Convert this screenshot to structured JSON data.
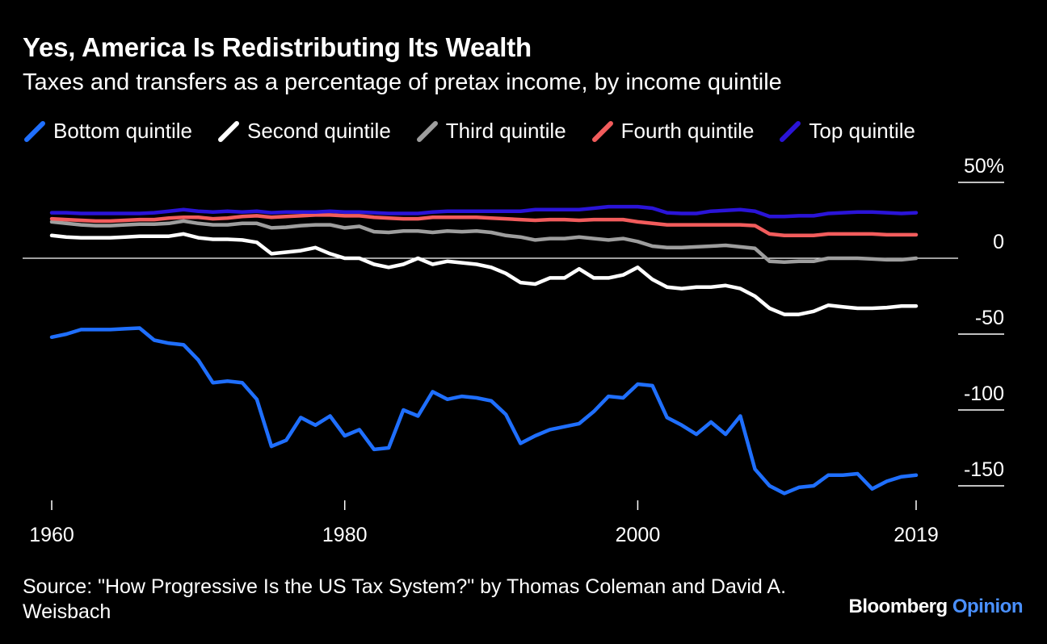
{
  "title": "Yes, America Is Redistributing Its Wealth",
  "subtitle": "Taxes and transfers as a percentage of pretax income, by income quintile",
  "source": "Source: \"How Progressive Is the US Tax System?\" by Thomas Coleman and David A. Weisbach",
  "brand": {
    "name": "Bloomberg",
    "section": "Opinion"
  },
  "chart_data": {
    "type": "line",
    "title": "Yes, America Is Redistributing Its Wealth",
    "subtitle": "Taxes and transfers as a percentage of pretax income, by income quintile",
    "xlabel": "",
    "ylabel": "",
    "xlim": [
      1960,
      2019
    ],
    "ylim": [
      -160,
      50
    ],
    "x_ticks": [
      {
        "value": 1960,
        "label": "1960"
      },
      {
        "value": 1980,
        "label": "1980"
      },
      {
        "value": 2000,
        "label": "2000"
      },
      {
        "value": 2019,
        "label": "2019"
      }
    ],
    "y_ticks": [
      {
        "value": 50,
        "label": "50%"
      },
      {
        "value": 0,
        "label": "0"
      },
      {
        "value": -50,
        "label": "-50"
      },
      {
        "value": -100,
        "label": "-100"
      },
      {
        "value": -150,
        "label": "-150"
      }
    ],
    "legend_position": "top",
    "x": [
      1960,
      1961,
      1962,
      1963,
      1964,
      1965,
      1966,
      1967,
      1968,
      1969,
      1970,
      1971,
      1972,
      1973,
      1974,
      1975,
      1976,
      1977,
      1978,
      1979,
      1980,
      1981,
      1982,
      1983,
      1984,
      1985,
      1986,
      1987,
      1988,
      1989,
      1990,
      1991,
      1992,
      1993,
      1994,
      1995,
      1996,
      1997,
      1998,
      1999,
      2000,
      2001,
      2002,
      2003,
      2004,
      2005,
      2006,
      2007,
      2008,
      2009,
      2010,
      2011,
      2012,
      2013,
      2014,
      2015,
      2016,
      2017,
      2018,
      2019
    ],
    "series": [
      {
        "name": "Bottom quintile",
        "color": "#1f6fff",
        "values": [
          -52,
          -50,
          -47,
          -47,
          -47,
          -46.5,
          -46,
          -54,
          -56,
          -57,
          -67,
          -82,
          -81,
          -82,
          -93,
          -124,
          -120,
          -105,
          -110,
          -104,
          -117,
          -113,
          -126,
          -125,
          -100,
          -104,
          -88,
          -93,
          -91,
          -92,
          -94,
          -103,
          -122,
          -117,
          -113,
          -111,
          -109,
          -101,
          -91,
          -92,
          -83,
          -84,
          -105,
          -110,
          -116,
          -108,
          -116,
          -104,
          -139,
          -150,
          -155,
          -151,
          -150,
          -143,
          -143,
          -142,
          -152,
          -147,
          -144,
          -143
        ]
      },
      {
        "name": "Second quintile",
        "color": "#ffffff",
        "values": [
          15,
          14,
          13.5,
          13.5,
          13.5,
          14,
          14.5,
          14.5,
          14.5,
          16,
          13.5,
          12.5,
          12.5,
          12,
          10.5,
          3,
          4,
          5,
          7,
          3,
          0,
          0,
          -4,
          -6,
          -4,
          0,
          -4,
          -2,
          -3,
          -4,
          -6,
          -10,
          -16,
          -17,
          -13,
          -13,
          -7,
          -13,
          -13,
          -11,
          -6,
          -14,
          -19,
          -20,
          -19,
          -19,
          -18,
          -20,
          -25,
          -33,
          -37,
          -37,
          -35,
          -31,
          -32,
          -33,
          -33,
          -32.5,
          -31.5,
          -31.5
        ]
      },
      {
        "name": "Third quintile",
        "color": "#9e9e9e",
        "values": [
          24,
          23,
          22,
          21.5,
          21.5,
          22,
          22.5,
          22.5,
          23,
          24.5,
          23,
          22,
          22,
          23,
          23,
          20,
          20.5,
          21.5,
          22,
          22,
          20,
          21,
          17.5,
          17,
          18,
          18,
          17,
          18,
          17.5,
          18,
          17,
          15,
          14,
          12,
          13,
          13,
          14,
          13,
          12,
          13,
          11,
          8,
          7,
          7,
          7.5,
          8,
          8.5,
          7.5,
          6.5,
          -2,
          -2.5,
          -2,
          -2,
          0,
          0,
          0,
          -0.5,
          -1,
          -1,
          0
        ]
      },
      {
        "name": "Fourth quintile",
        "color": "#f25c5c",
        "values": [
          26,
          25.5,
          25,
          24.5,
          24.5,
          25,
          25.5,
          25.5,
          26.5,
          27,
          27,
          26,
          26.5,
          27.5,
          28,
          27,
          27.5,
          28,
          28.5,
          28.5,
          28,
          28,
          27,
          26.5,
          26,
          26,
          27,
          27,
          27,
          27,
          26.5,
          26,
          25.5,
          25,
          25.5,
          25.5,
          25,
          25.5,
          25.5,
          25.5,
          24,
          23,
          22,
          22,
          22,
          22,
          22,
          22,
          21.5,
          16,
          15,
          15,
          15,
          16,
          16,
          16,
          16,
          15.5,
          15.5,
          15.5
        ]
      },
      {
        "name": "Top quintile",
        "color": "#2a14d8",
        "values": [
          30,
          30,
          29.5,
          29.5,
          29.5,
          29.5,
          29.5,
          30,
          31,
          32,
          31,
          30.5,
          31,
          30.5,
          31,
          30,
          30.5,
          30.5,
          30.5,
          31,
          30.5,
          30.5,
          30,
          29.5,
          29.5,
          29.5,
          30.5,
          31,
          31,
          31,
          31,
          31,
          31,
          32,
          32,
          32,
          32,
          33,
          34,
          34,
          34,
          33,
          30,
          29.5,
          29.5,
          31,
          31.5,
          32,
          31,
          27.5,
          27.5,
          28,
          28,
          29.5,
          30,
          30.5,
          30.5,
          30,
          29.5,
          30
        ]
      }
    ]
  }
}
